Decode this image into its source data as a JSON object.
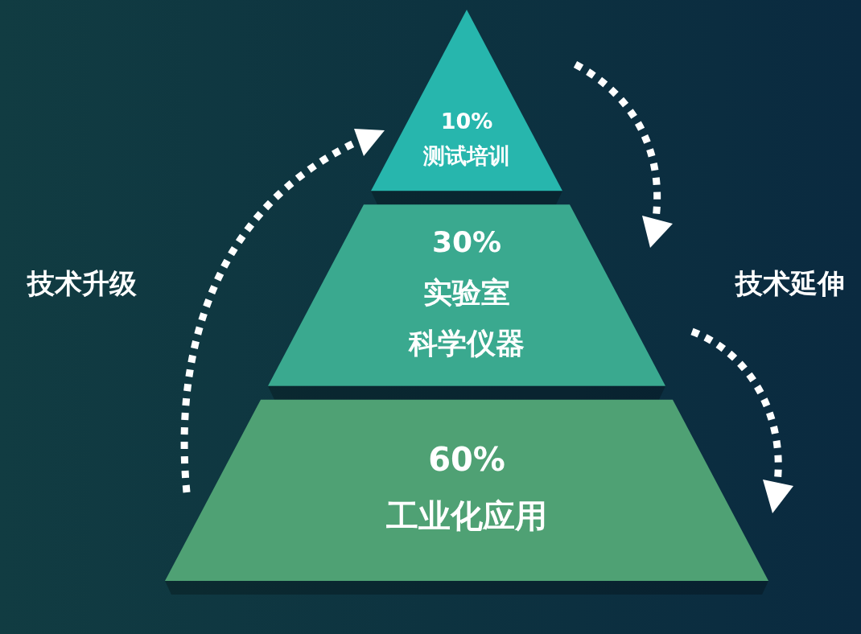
{
  "chart_data": {
    "type": "other",
    "categories": [
      "测试培训",
      "实验室科学仪器",
      "工业化应用"
    ],
    "values": [
      10,
      30,
      60
    ],
    "value_labels": [
      "10%",
      "30%",
      "60%"
    ],
    "colors": [
      "#27b6ad",
      "#3aa98f",
      "#4fa174"
    ],
    "annotations": [
      "技术升级",
      "技术延伸"
    ]
  }
}
